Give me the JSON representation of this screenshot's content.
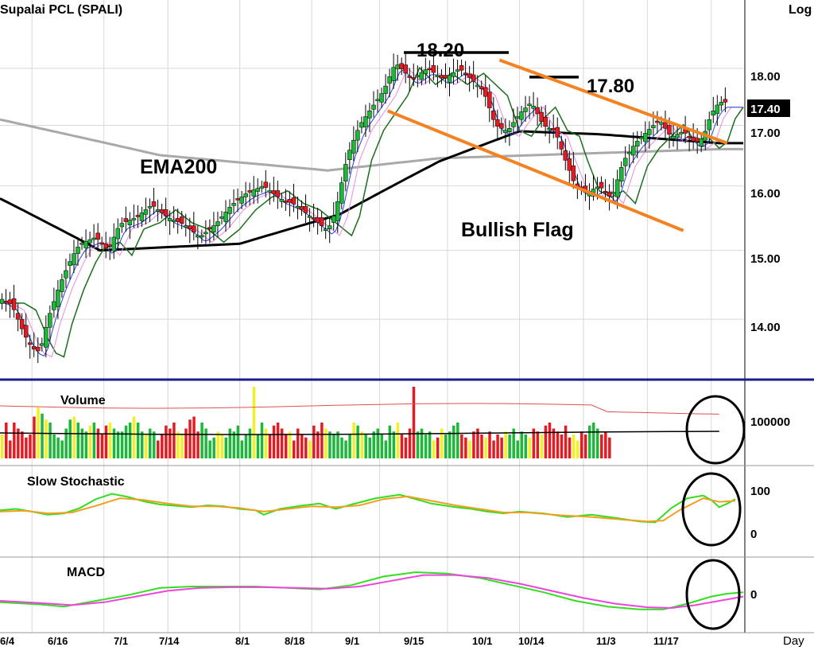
{
  "header": {
    "title": "Supalai  PCL  (SPALI)",
    "scale": "Log"
  },
  "price_axis": {
    "ticks": [
      "18.00",
      "17.00",
      "16.00",
      "15.00",
      "14.00"
    ],
    "last_price": "17.40"
  },
  "annotations": {
    "high1": "18.20",
    "high2": "17.80",
    "ema": "EMA200",
    "pattern": "Bullish Flag"
  },
  "panels": {
    "volume": {
      "title": "Volume",
      "tick": "100000"
    },
    "stochastic": {
      "title": "Slow  Stochastic",
      "tick_high": "100",
      "tick_low": "0"
    },
    "macd": {
      "title": "MACD",
      "tick": "0"
    }
  },
  "x_axis": {
    "labels": [
      "6/4",
      "6/16",
      "7/1",
      "7/14",
      "8/1",
      "8/18",
      "9/1",
      "9/15",
      "10/1",
      "10/14",
      "11/3",
      "11/17"
    ],
    "period": "Day"
  },
  "colors": {
    "up": "#1db83a",
    "down": "#e31b23",
    "ema200": "#a9a9a9",
    "ema50": "#000000",
    "ema_green": "#1a6e1a",
    "channel": "#f58220",
    "stoch_k": "#33dd22",
    "stoch_d": "#f0a020",
    "macd": "#33dd22",
    "signal": "#ee44dd",
    "volume_yellow": "#f2f01e",
    "frame": "#1c1c8c"
  },
  "chart_data": {
    "type": "candlestick",
    "title": "Supalai  PCL  (SPALI)",
    "scale": "log",
    "ylim": [
      13.2,
      19.0
    ],
    "x": [
      "6/4",
      "6/16",
      "7/1",
      "7/14",
      "8/1",
      "8/18",
      "9/1",
      "9/15",
      "10/1",
      "10/14",
      "11/3",
      "11/17"
    ],
    "close_path": [
      [
        0,
        14.3
      ],
      [
        3,
        14.2
      ],
      [
        6,
        13.8
      ],
      [
        8,
        13.6
      ],
      [
        10,
        13.55
      ],
      [
        12,
        14.0
      ],
      [
        15,
        14.5
      ],
      [
        18,
        14.9
      ],
      [
        20,
        15.1
      ],
      [
        24,
        15.2
      ],
      [
        27,
        15.0
      ],
      [
        30,
        15.4
      ],
      [
        34,
        15.5
      ],
      [
        38,
        15.7
      ],
      [
        42,
        15.5
      ],
      [
        46,
        15.4
      ],
      [
        50,
        15.2
      ],
      [
        54,
        15.4
      ],
      [
        58,
        15.7
      ],
      [
        62,
        15.9
      ],
      [
        66,
        16.0
      ],
      [
        70,
        15.8
      ],
      [
        74,
        15.7
      ],
      [
        78,
        15.5
      ],
      [
        82,
        15.3
      ],
      [
        84,
        15.6
      ],
      [
        87,
        16.5
      ],
      [
        90,
        17.0
      ],
      [
        93,
        17.3
      ],
      [
        96,
        17.6
      ],
      [
        99,
        18.1
      ],
      [
        103,
        17.8
      ],
      [
        107,
        18.0
      ],
      [
        111,
        17.8
      ],
      [
        115,
        18.0
      ],
      [
        118,
        17.8
      ],
      [
        121,
        17.6
      ],
      [
        124,
        17.0
      ],
      [
        127,
        16.9
      ],
      [
        130,
        17.2
      ],
      [
        133,
        17.4
      ],
      [
        136,
        17.0
      ],
      [
        139,
        16.9
      ],
      [
        141,
        16.5
      ],
      [
        144,
        16.0
      ],
      [
        147,
        15.9
      ],
      [
        150,
        16.0
      ],
      [
        153,
        15.8
      ],
      [
        156,
        16.4
      ],
      [
        159,
        16.7
      ],
      [
        162,
        16.9
      ],
      [
        165,
        17.1
      ],
      [
        168,
        16.8
      ],
      [
        171,
        16.9
      ],
      [
        174,
        16.7
      ],
      [
        176,
        16.8
      ],
      [
        178,
        17.2
      ],
      [
        180,
        17.4
      ]
    ],
    "ema200_path": [
      [
        0,
        17.1
      ],
      [
        40,
        16.5
      ],
      [
        82,
        16.25
      ],
      [
        110,
        16.45
      ],
      [
        180,
        16.6
      ]
    ],
    "ema50_path": [
      [
        0,
        15.8
      ],
      [
        25,
        15.0
      ],
      [
        60,
        15.1
      ],
      [
        85,
        15.55
      ],
      [
        110,
        16.4
      ],
      [
        130,
        16.9
      ],
      [
        150,
        16.85
      ],
      [
        180,
        16.7
      ]
    ],
    "resistance_levels": [
      18.2,
      17.8
    ],
    "channel": {
      "upper": [
        [
          125,
          18.15
        ],
        [
          182,
          16.7
        ]
      ],
      "lower": [
        [
          97,
          17.25
        ],
        [
          171,
          15.3
        ]
      ]
    },
    "volume": {
      "tick": 100000,
      "values": [
        40,
        60,
        30,
        60,
        50,
        45,
        35,
        40,
        70,
        85,
        75,
        65,
        60,
        40,
        35,
        30,
        50,
        65,
        70,
        60,
        50,
        45,
        55,
        60,
        50,
        40,
        55,
        60,
        50,
        45,
        45,
        55,
        60,
        70,
        60,
        45,
        40,
        50,
        45,
        30,
        40,
        55,
        50,
        60,
        45,
        40,
        50,
        65,
        70,
        45,
        60,
        50,
        30,
        35,
        45,
        40,
        35,
        50,
        45,
        55,
        30,
        40,
        50,
        120,
        40,
        60,
        50,
        40,
        55,
        60,
        50,
        40,
        45,
        30,
        50,
        40,
        35,
        30,
        55,
        45,
        60,
        50,
        45,
        40,
        45,
        35,
        30,
        40,
        60,
        55,
        45,
        40,
        35,
        45,
        50,
        40,
        30,
        55,
        45,
        60,
        40,
        35,
        50,
        120,
        45,
        50,
        40,
        45,
        30,
        35,
        50,
        40,
        45,
        55,
        60,
        40,
        35,
        30,
        45,
        50,
        40,
        35,
        45,
        30,
        40,
        35,
        45,
        40,
        50,
        30,
        45,
        40,
        35,
        50,
        45,
        40,
        55,
        60,
        50,
        45,
        40,
        55,
        35,
        40,
        30,
        45,
        40,
        55,
        60,
        50,
        40,
        45,
        35
      ]
    },
    "stochastic": {
      "ylim": [
        0,
        100
      ],
      "k": [
        [
          0,
          55
        ],
        [
          4,
          58
        ],
        [
          8,
          52
        ],
        [
          12,
          45
        ],
        [
          16,
          48
        ],
        [
          20,
          60
        ],
        [
          24,
          80
        ],
        [
          28,
          92
        ],
        [
          32,
          85
        ],
        [
          36,
          75
        ],
        [
          40,
          68
        ],
        [
          44,
          65
        ],
        [
          48,
          62
        ],
        [
          52,
          66
        ],
        [
          56,
          64
        ],
        [
          60,
          58
        ],
        [
          64,
          55
        ],
        [
          66,
          45
        ],
        [
          70,
          58
        ],
        [
          76,
          66
        ],
        [
          80,
          70
        ],
        [
          84,
          58
        ],
        [
          88,
          68
        ],
        [
          94,
          82
        ],
        [
          100,
          90
        ],
        [
          104,
          80
        ],
        [
          108,
          70
        ],
        [
          114,
          62
        ],
        [
          118,
          58
        ],
        [
          122,
          52
        ],
        [
          126,
          48
        ],
        [
          130,
          52
        ],
        [
          136,
          48
        ],
        [
          142,
          40
        ],
        [
          148,
          45
        ],
        [
          154,
          38
        ],
        [
          160,
          30
        ],
        [
          164,
          28
        ],
        [
          168,
          60
        ],
        [
          172,
          82
        ],
        [
          176,
          88
        ],
        [
          178,
          78
        ],
        [
          180,
          62
        ],
        [
          182,
          70
        ],
        [
          184,
          80
        ]
      ],
      "d": [
        [
          0,
          52
        ],
        [
          6,
          54
        ],
        [
          12,
          48
        ],
        [
          18,
          50
        ],
        [
          24,
          65
        ],
        [
          30,
          82
        ],
        [
          36,
          78
        ],
        [
          42,
          70
        ],
        [
          48,
          64
        ],
        [
          54,
          64
        ],
        [
          60,
          60
        ],
        [
          66,
          52
        ],
        [
          72,
          58
        ],
        [
          78,
          64
        ],
        [
          84,
          62
        ],
        [
          90,
          66
        ],
        [
          96,
          80
        ],
        [
          102,
          86
        ],
        [
          108,
          76
        ],
        [
          114,
          66
        ],
        [
          120,
          58
        ],
        [
          126,
          50
        ],
        [
          132,
          50
        ],
        [
          140,
          44
        ],
        [
          148,
          40
        ],
        [
          156,
          34
        ],
        [
          162,
          30
        ],
        [
          166,
          32
        ],
        [
          170,
          55
        ],
        [
          176,
          82
        ],
        [
          180,
          74
        ],
        [
          184,
          76
        ]
      ]
    },
    "macd": {
      "macd": [
        [
          0,
          -12
        ],
        [
          10,
          -15
        ],
        [
          16,
          -18
        ],
        [
          24,
          -10
        ],
        [
          32,
          -2
        ],
        [
          40,
          8
        ],
        [
          48,
          10
        ],
        [
          56,
          10
        ],
        [
          64,
          10
        ],
        [
          72,
          8
        ],
        [
          80,
          6
        ],
        [
          88,
          12
        ],
        [
          96,
          24
        ],
        [
          104,
          30
        ],
        [
          112,
          28
        ],
        [
          120,
          22
        ],
        [
          128,
          12
        ],
        [
          136,
          2
        ],
        [
          144,
          -10
        ],
        [
          152,
          -18
        ],
        [
          160,
          -22
        ],
        [
          166,
          -22
        ],
        [
          172,
          -14
        ],
        [
          178,
          -4
        ],
        [
          182,
          0
        ],
        [
          186,
          2
        ]
      ],
      "signal": [
        [
          0,
          -10
        ],
        [
          10,
          -13
        ],
        [
          18,
          -16
        ],
        [
          26,
          -12
        ],
        [
          34,
          -4
        ],
        [
          42,
          4
        ],
        [
          50,
          8
        ],
        [
          58,
          9
        ],
        [
          66,
          9
        ],
        [
          74,
          8
        ],
        [
          82,
          7
        ],
        [
          90,
          10
        ],
        [
          98,
          18
        ],
        [
          106,
          26
        ],
        [
          114,
          26
        ],
        [
          122,
          22
        ],
        [
          130,
          14
        ],
        [
          138,
          4
        ],
        [
          146,
          -6
        ],
        [
          154,
          -14
        ],
        [
          162,
          -19
        ],
        [
          168,
          -20
        ],
        [
          174,
          -16
        ],
        [
          180,
          -10
        ],
        [
          186,
          -4
        ]
      ]
    }
  }
}
